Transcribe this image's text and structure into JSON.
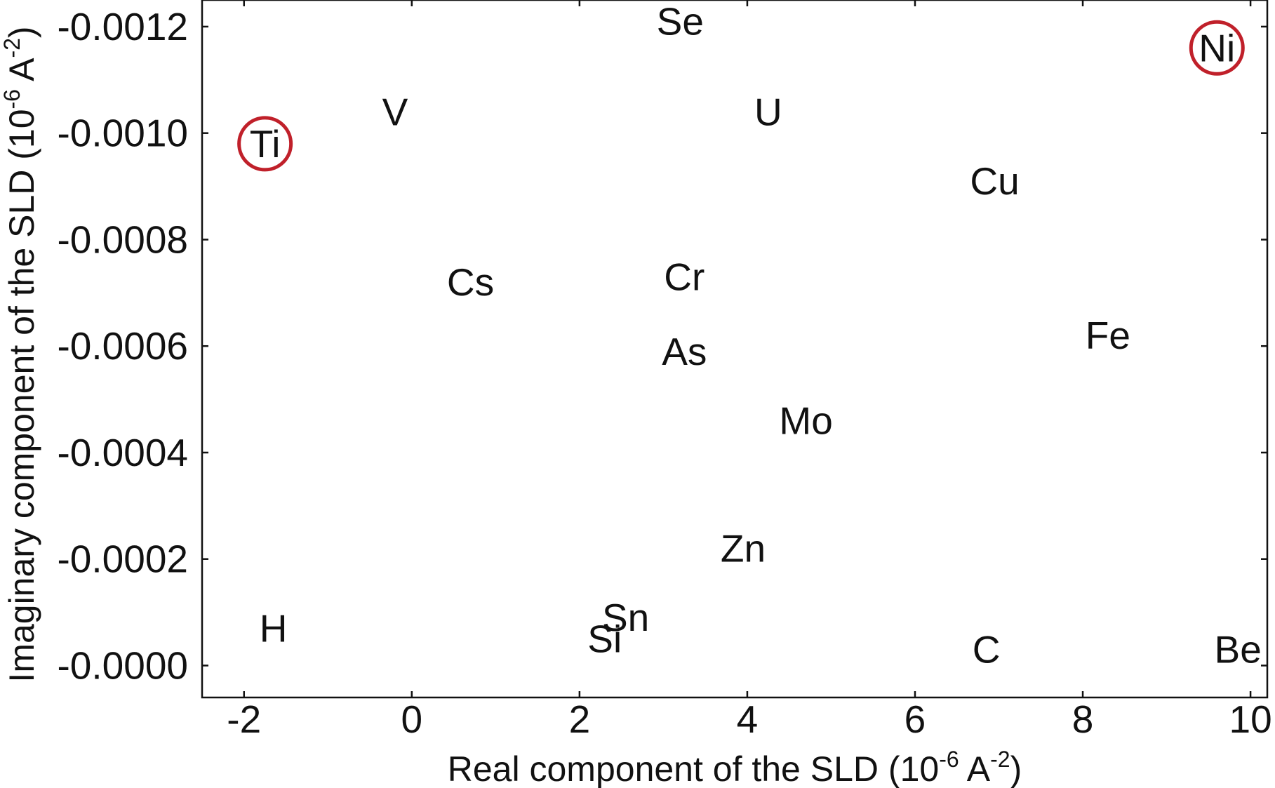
{
  "chart_data": {
    "type": "scatter",
    "title": "",
    "xlabel": "Real component of the SLD (10-6 A-2)",
    "xlabel_parts": {
      "text": "Real component of the SLD (10",
      "exp1": "-6",
      "unit": " A",
      "exp2": "-2",
      "close": ")"
    },
    "ylabel": "Imaginary component of the SLD (10-6 A-2)",
    "ylabel_parts": {
      "text": "Imaginary component of the SLD (10",
      "exp1": "-6",
      "unit": " A",
      "exp2": "-2",
      "close": ")"
    },
    "xlim": [
      -2.5,
      10.2
    ],
    "ylim": [
      -6e-05,
      0.00125
    ],
    "xticks": [
      -2,
      0,
      2,
      4,
      6,
      8,
      10
    ],
    "xtick_labels": [
      "-2",
      "0",
      "2",
      "4",
      "6",
      "8",
      "10"
    ],
    "yticks": [
      0,
      0.0002,
      0.0004,
      0.0006,
      0.0008,
      0.001,
      0.0012
    ],
    "ytick_labels": [
      "-0.0000",
      "-0.0002",
      "-0.0004",
      "-0.0006",
      "-0.0008",
      "-0.0010",
      "-0.0012"
    ],
    "grid": false,
    "highlight_color": "#c0202a",
    "points": [
      {
        "label": "Se",
        "x": 3.2,
        "y": 0.00121,
        "highlighted": false
      },
      {
        "label": "Ni",
        "x": 9.6,
        "y": 0.00116,
        "highlighted": true
      },
      {
        "label": "V",
        "x": -0.2,
        "y": 0.00104,
        "highlighted": false
      },
      {
        "label": "U",
        "x": 4.25,
        "y": 0.00104,
        "highlighted": false
      },
      {
        "label": "Ti",
        "x": -1.75,
        "y": 0.00098,
        "highlighted": true
      },
      {
        "label": "Cu",
        "x": 6.95,
        "y": 0.00091,
        "highlighted": false
      },
      {
        "label": "Cs",
        "x": 0.7,
        "y": 0.00072,
        "highlighted": false
      },
      {
        "label": "Cr",
        "x": 3.25,
        "y": 0.00073,
        "highlighted": false
      },
      {
        "label": "Fe",
        "x": 8.3,
        "y": 0.00062,
        "highlighted": false
      },
      {
        "label": "As",
        "x": 3.25,
        "y": 0.00059,
        "highlighted": false
      },
      {
        "label": "Mo",
        "x": 4.7,
        "y": 0.00046,
        "highlighted": false
      },
      {
        "label": "Zn",
        "x": 3.95,
        "y": 0.00022,
        "highlighted": false
      },
      {
        "label": "Sn",
        "x": 2.55,
        "y": 9e-05,
        "highlighted": false
      },
      {
        "label": "H",
        "x": -1.65,
        "y": 7e-05,
        "highlighted": false
      },
      {
        "label": "Si",
        "x": 2.3,
        "y": 5e-05,
        "highlighted": false
      },
      {
        "label": "C",
        "x": 6.85,
        "y": 3e-05,
        "highlighted": false
      },
      {
        "label": "Be",
        "x": 9.85,
        "y": 3e-05,
        "highlighted": false
      }
    ]
  }
}
